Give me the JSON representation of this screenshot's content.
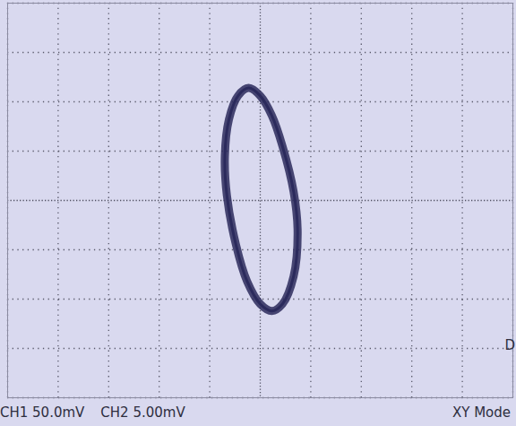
{
  "chart_data": {
    "type": "line",
    "x": [
      -11.5,
      0,
      11.5,
      22,
      33,
      37,
      33,
      22,
      11.5,
      0,
      -13,
      -24,
      -33,
      -35,
      -31,
      -22
    ],
    "values": [
      11.4,
      10.6,
      8.6,
      5.5,
      0.9,
      -3.2,
      -7.7,
      -10.5,
      -11.2,
      -10.5,
      -8.2,
      -4.5,
      0.5,
      4.5,
      8.2,
      10.6
    ],
    "color": "#2b2a5c",
    "xlim": [
      -250,
      250
    ],
    "xticks": [
      -250,
      -200,
      -150,
      -100,
      -50,
      0,
      50,
      100,
      150,
      200,
      250
    ],
    "ylim": [
      -20,
      20
    ],
    "yticks": [
      -20,
      -15,
      -10,
      -5,
      0,
      5,
      10,
      15,
      20
    ],
    "grid": true,
    "tick_labels": false,
    "channel_labels": [
      "CH1 50.0mV",
      "CH2 5.00mV"
    ],
    "mode_label": "XY Mode",
    "marker_label": "D"
  }
}
